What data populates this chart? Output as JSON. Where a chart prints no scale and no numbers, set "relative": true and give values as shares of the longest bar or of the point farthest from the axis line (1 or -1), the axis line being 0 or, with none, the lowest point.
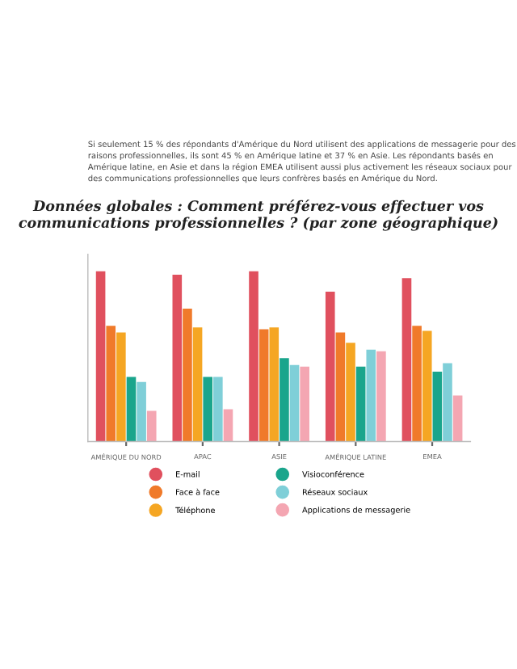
{
  "chart_data": {
    "type": "bar",
    "title": "Données globales : Comment préférez-vous effectuer vos communications professionnelles ? (par zone géographique)",
    "annotations": [
      "Si seulement 15 % des répondants d'Amérique du Nord utilisent des applications de messagerie pour des raisons professionnelles, ils sont 45 % en Amérique latine et 37 % en Asie. Les répondants basés en Amérique latine, en Asie et dans la région EMEA utilisent aussi plus activement les réseaux sociaux pour des communications professionnelles que leurs confrères basés en Amérique du Nord."
    ],
    "categories": [
      "AMÉRIQUE DU NORD",
      "APAC",
      "ASIE",
      "AMÉRIQUE LATINE",
      "EMEA"
    ],
    "series": [
      {
        "name": "E-mail",
        "color": "#e0505e",
        "values": [
          1.0,
          0.98,
          1.0,
          0.88,
          0.96
        ]
      },
      {
        "name": "Face à face",
        "color": "#f07a2a",
        "values": [
          0.68,
          0.78,
          0.66,
          0.64,
          0.68
        ]
      },
      {
        "name": "Téléphone",
        "color": "#f5a623",
        "values": [
          0.64,
          0.67,
          0.67,
          0.58,
          0.65
        ]
      },
      {
        "name": "Visioconférence",
        "color": "#1aa58c",
        "values": [
          0.38,
          0.38,
          0.49,
          0.44,
          0.41
        ]
      },
      {
        "name": "Réseaux sociaux",
        "color": "#7fcfd8",
        "values": [
          0.35,
          0.38,
          0.45,
          0.54,
          0.46
        ]
      },
      {
        "name": "Applications de messagerie",
        "color": "#f4a6b2",
        "values": [
          0.18,
          0.19,
          0.44,
          0.53,
          0.27
        ]
      }
    ],
    "relative": true,
    "tick_labels": "x",
    "legend": "bottom",
    "grid": false
  }
}
